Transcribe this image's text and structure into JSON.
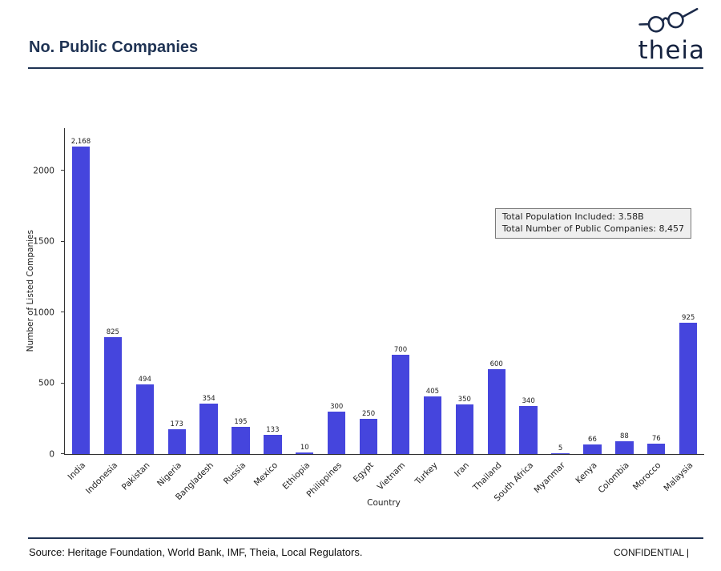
{
  "header": {
    "title": "No. Public Companies",
    "logo_text": "theia"
  },
  "chart_data": {
    "type": "bar",
    "title": "No. Public Companies",
    "categories": [
      "India",
      "Indonesia",
      "Pakistan",
      "Nigeria",
      "Bangladesh",
      "Russia",
      "Mexico",
      "Ethiopia",
      "Philippines",
      "Egypt",
      "Vietnam",
      "Turkey",
      "Iran",
      "Thailand",
      "South Africa",
      "Myanmar",
      "Kenya",
      "Colombia",
      "Morocco",
      "Malaysia"
    ],
    "values": [
      2168,
      825,
      494,
      173,
      354,
      195,
      133,
      10,
      300,
      250,
      700,
      405,
      350,
      600,
      340,
      5,
      66,
      88,
      76,
      925
    ],
    "value_labels": [
      "2,168",
      "825",
      "494",
      "173",
      "354",
      "195",
      "133",
      "10",
      "300",
      "250",
      "700",
      "405",
      "350",
      "600",
      "340",
      "5",
      "66",
      "88",
      "76",
      "925"
    ],
    "xlabel": "Country",
    "ylabel": "Number of Listed Companies",
    "ylim": [
      0,
      2300
    ],
    "yticks": [
      0,
      500,
      1000,
      1500,
      2000
    ],
    "grid": false,
    "bar_color": "#4545dd",
    "annotation": {
      "line1": "Total Population Included: 3.58B",
      "line2": "Total Number of Public Companies: 8,457"
    }
  },
  "footer": {
    "source": "Source: Heritage Foundation, World Bank, IMF, Theia, Local Regulators.",
    "confidential": "CONFIDENTIAL |"
  }
}
